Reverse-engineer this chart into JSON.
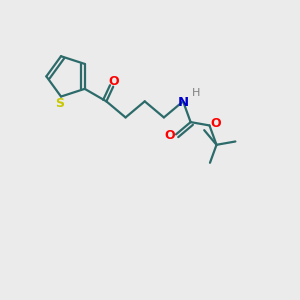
{
  "background_color": "#ebebeb",
  "bond_color": "#2d6b6b",
  "sulfur_color": "#c8c800",
  "oxygen_color": "#ff0000",
  "nitrogen_color": "#0000cc",
  "hydrogen_color": "#808080",
  "line_width": 1.6,
  "figsize": [
    3.0,
    3.0
  ],
  "dpi": 100,
  "xlim": [
    0,
    10
  ],
  "ylim": [
    0,
    10
  ]
}
